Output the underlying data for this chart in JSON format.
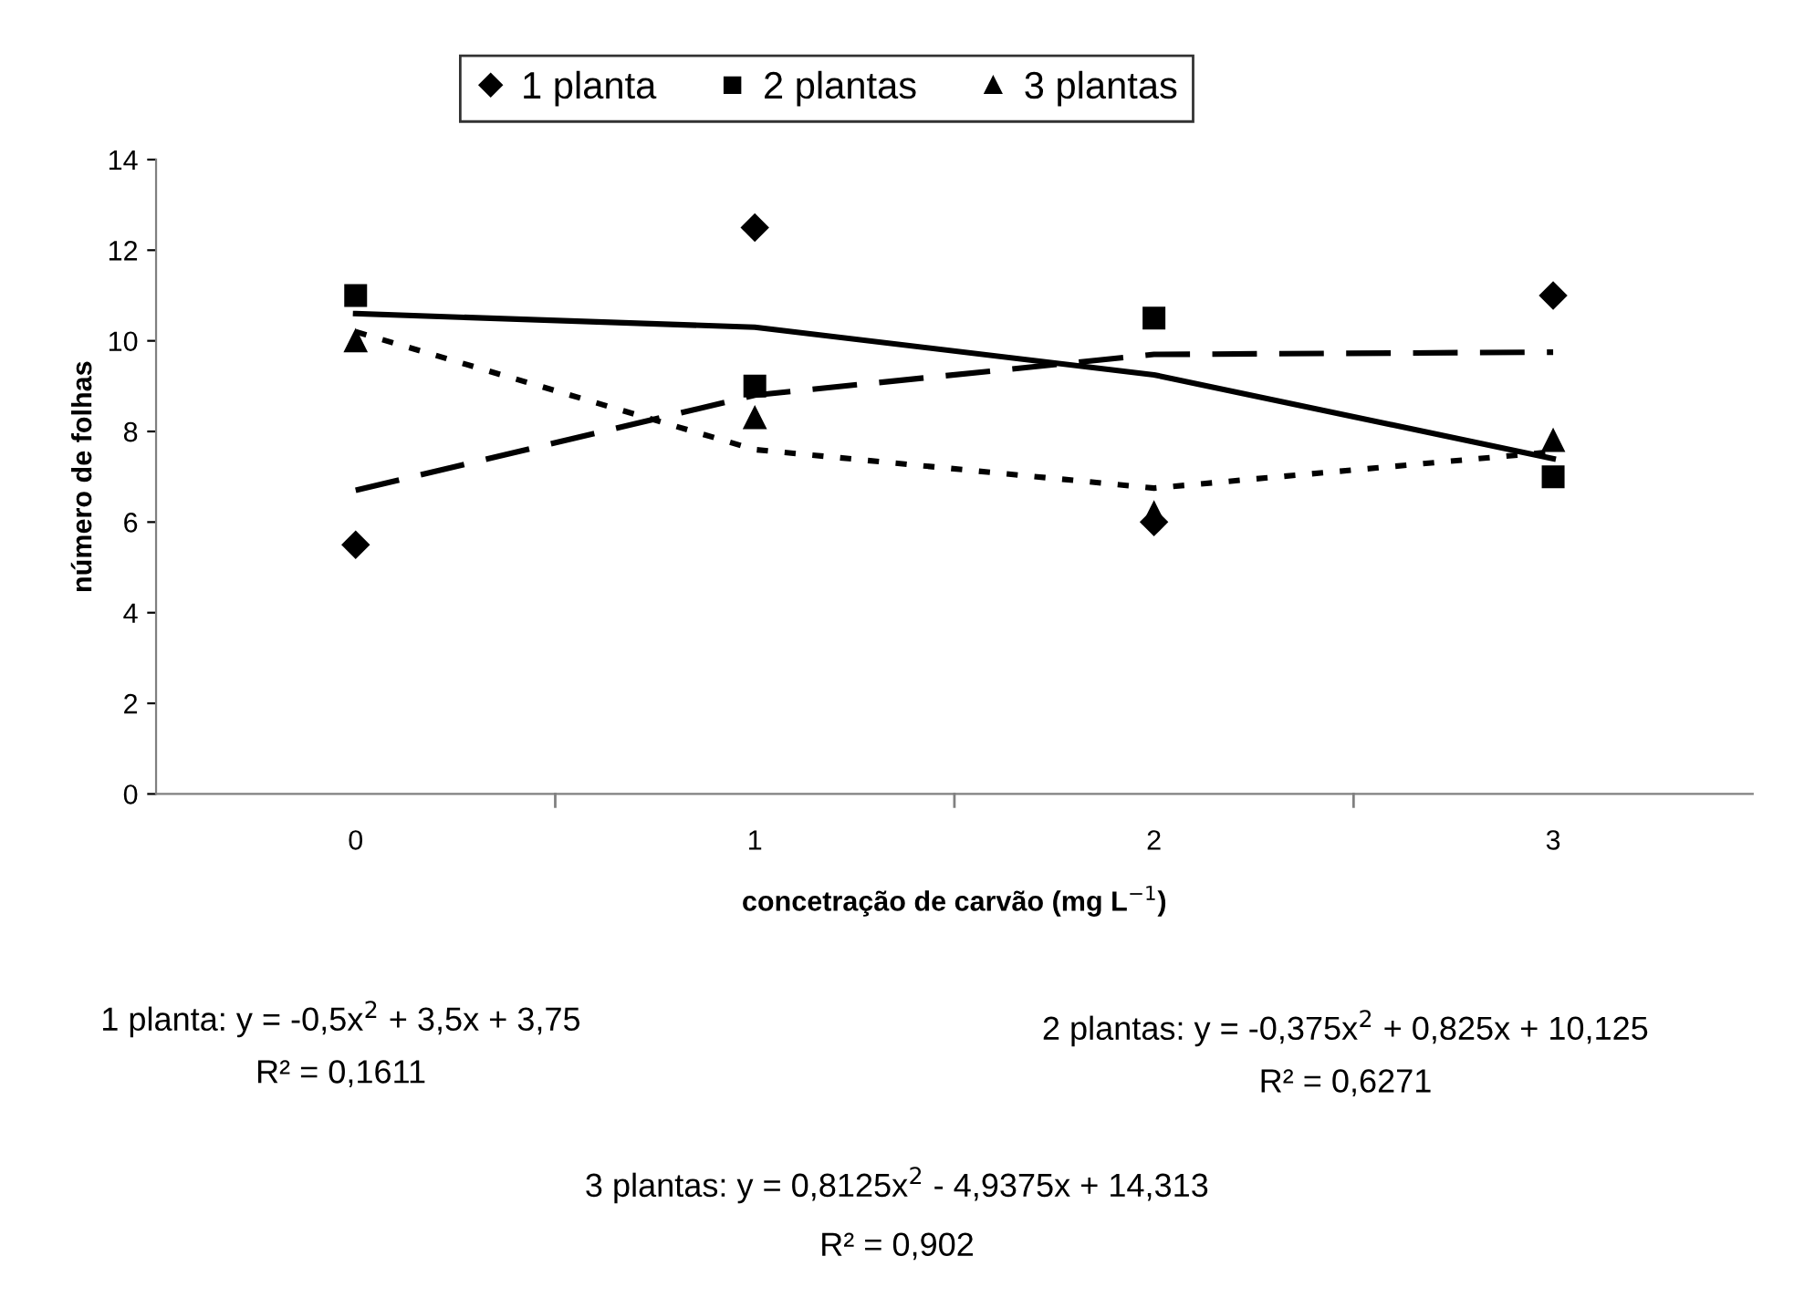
{
  "chart_data": {
    "type": "scatter",
    "xlabel": "concetração de carvão (mg L$^{−1}$)",
    "ylabel": "número de folhas",
    "categories": [
      "0",
      "1",
      "2",
      "3"
    ],
    "ylim": [
      0,
      14
    ],
    "yticks": [
      0,
      2,
      4,
      6,
      8,
      10,
      12,
      14
    ],
    "grid": false,
    "legend": "top",
    "series": [
      {
        "name": "1 planta",
        "color": "#000000",
        "marker": "diamond",
        "values": [
          5.5,
          12.5,
          6,
          11
        ]
      },
      {
        "name": "2 plantas",
        "color": "#000000",
        "marker": "square",
        "values": [
          11,
          9,
          10.5,
          7
        ]
      },
      {
        "name": "3 plantas",
        "color": "#000000",
        "marker": "triangle",
        "values": [
          10,
          8.3,
          6.2,
          7.8
        ]
      },
      {
        "type": "line",
        "color": "#000000",
        "marker": "none",
        "line_style": "solid",
        "values": [
          10.6,
          10.3,
          9.25,
          7.4
        ]
      },
      {
        "type": "line",
        "color": "#000000",
        "marker": "none",
        "line_style": "dashed",
        "values": [
          6.7,
          8.8,
          9.7,
          9.75
        ]
      },
      {
        "type": "line",
        "color": "#000000",
        "marker": "none",
        "line_style": "dotted",
        "values": [
          10.2,
          7.6,
          6.75,
          7.55
        ]
      }
    ],
    "annotations": [
      "1 planta: y = -0,5x$^{2}$ + 3,5x + 3,75",
      "R² = 0,1611",
      "2 plantas: y = -0,375x$^{2}$ + 0,825x + 10,125",
      "R² = 0,6271",
      "3 plantas: y = 0,8125x$^{2}$ - 4,9375x + 14,313",
      "R² = 0,902"
    ]
  }
}
